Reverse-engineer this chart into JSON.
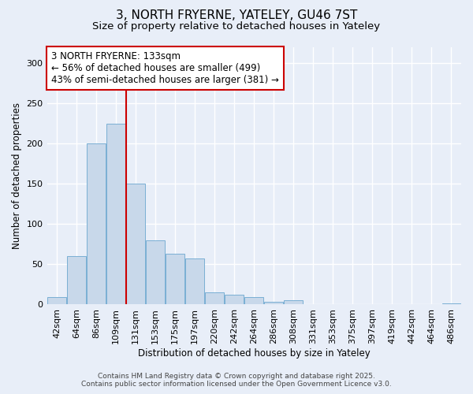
{
  "title1": "3, NORTH FRYERNE, YATELEY, GU46 7ST",
  "title2": "Size of property relative to detached houses in Yateley",
  "xlabel": "Distribution of detached houses by size in Yateley",
  "ylabel": "Number of detached properties",
  "categories": [
    "42sqm",
    "64sqm",
    "86sqm",
    "109sqm",
    "131sqm",
    "153sqm",
    "175sqm",
    "197sqm",
    "220sqm",
    "242sqm",
    "264sqm",
    "286sqm",
    "308sqm",
    "331sqm",
    "353sqm",
    "375sqm",
    "397sqm",
    "419sqm",
    "442sqm",
    "464sqm",
    "486sqm"
  ],
  "values": [
    9,
    60,
    200,
    225,
    150,
    80,
    63,
    57,
    15,
    12,
    9,
    3,
    5,
    0,
    0,
    0,
    0,
    0,
    0,
    0,
    1
  ],
  "bar_color": "#c8d8ea",
  "bar_edge_color": "#7aafd4",
  "vline_color": "#cc0000",
  "annotation_text": "3 NORTH FRYERNE: 133sqm\n← 56% of detached houses are smaller (499)\n43% of semi-detached houses are larger (381) →",
  "annotation_box_color": "#ffffff",
  "annotation_box_edge": "#cc0000",
  "annotation_fontsize": 8.5,
  "ylim": [
    0,
    320
  ],
  "yticks": [
    0,
    50,
    100,
    150,
    200,
    250,
    300
  ],
  "bg_color": "#e8eef8",
  "plot_bg_color": "#e8eef8",
  "grid_color": "#ffffff",
  "footer1": "Contains HM Land Registry data © Crown copyright and database right 2025.",
  "footer2": "Contains public sector information licensed under the Open Government Licence v3.0.",
  "title_fontsize": 11,
  "subtitle_fontsize": 9.5,
  "axis_label_fontsize": 8.5,
  "tick_fontsize": 8,
  "footer_fontsize": 6.5
}
